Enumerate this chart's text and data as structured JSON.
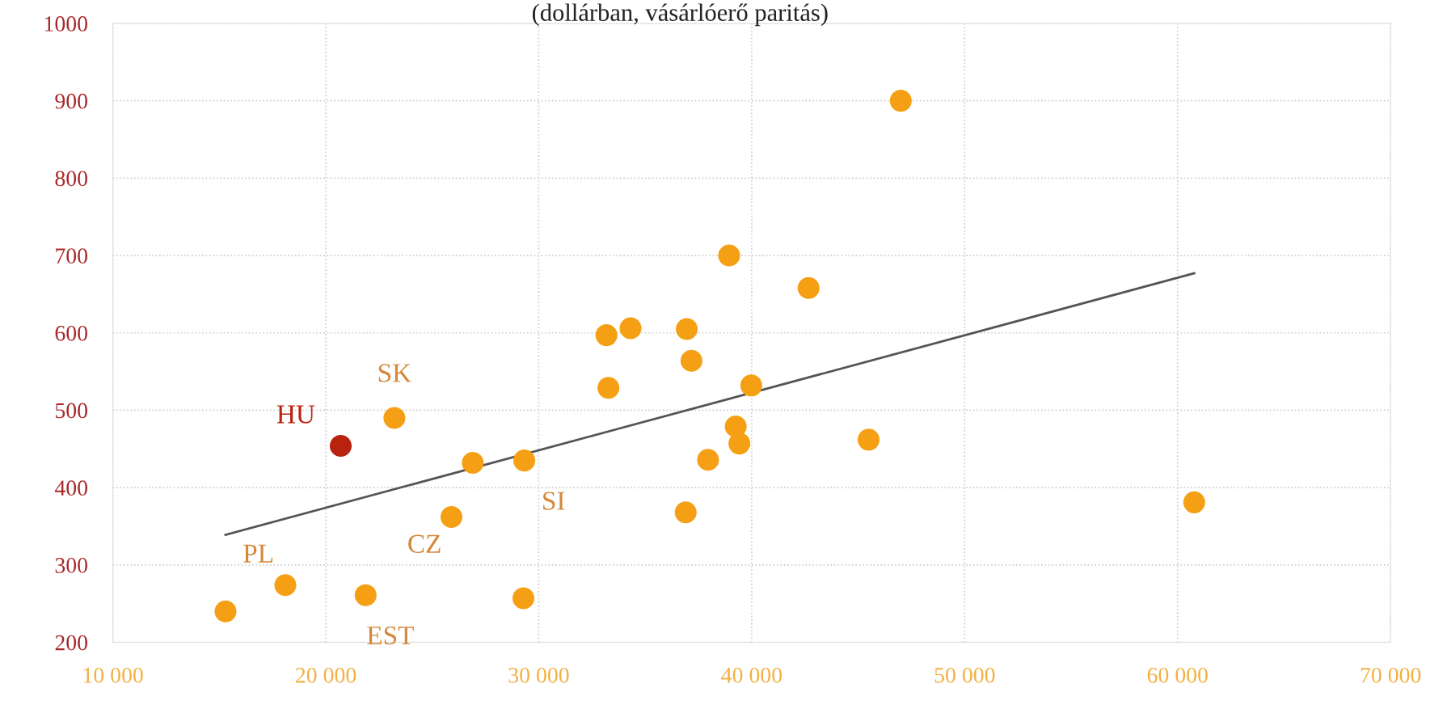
{
  "chart_data": {
    "type": "scatter",
    "subtitle": "(dollárban, vásárlóerő paritás)",
    "series": [
      {
        "marker": "circle",
        "x": [
          15290,
          18100,
          20700,
          21870,
          23220,
          25900,
          26900,
          29320,
          29280,
          33180,
          34310,
          33270,
          36950,
          37170,
          36900,
          38940,
          37950,
          39250,
          39420,
          39980,
          42670,
          45490,
          47000,
          60780
        ],
        "values": [
          240,
          274,
          454,
          261,
          490,
          362,
          432,
          435,
          257,
          597,
          606,
          529,
          605,
          564,
          368,
          700,
          436,
          479,
          457,
          532,
          658,
          462,
          900,
          381
        ],
        "colors": [
          "#f5a014",
          "#f5a014",
          "#b8230f",
          "#f5a014",
          "#f5a014",
          "#f5a014",
          "#f5a014",
          "#f5a014",
          "#f5a014",
          "#f5a014",
          "#f5a014",
          "#f5a014",
          "#f5a014",
          "#f5a014",
          "#f5a014",
          "#f5a014",
          "#f5a014",
          "#f5a014",
          "#f5a014",
          "#f5a014",
          "#f5a014",
          "#f5a014",
          "#f5a014",
          "#f5a014"
        ]
      },
      {
        "type": "line",
        "x": [
          15290,
          60780
        ],
        "values": [
          339,
          677
        ],
        "color": "#555555"
      }
    ],
    "annotations": [
      {
        "text": "SK",
        "x": 23220,
        "y": 490
      },
      {
        "text": "HU",
        "x": 20700,
        "y": 454
      },
      {
        "text": "PL",
        "x": 18100,
        "y": 274
      },
      {
        "text": "EST",
        "x": 21870,
        "y": 261
      },
      {
        "text": "CZ",
        "x": 25900,
        "y": 362
      },
      {
        "text": "SI",
        "x": 29320,
        "y": 435
      }
    ],
    "xlim": [
      10000,
      70000
    ],
    "xticks": [
      {
        "value": 10000,
        "label": "10 000"
      },
      {
        "value": 20000,
        "label": "20 000"
      },
      {
        "value": 30000,
        "label": "30 000"
      },
      {
        "value": 40000,
        "label": "40 000"
      },
      {
        "value": 50000,
        "label": "50 000"
      },
      {
        "value": 60000,
        "label": "60 000"
      },
      {
        "value": 70000,
        "label": "70 000"
      }
    ],
    "ylim": [
      200,
      1000
    ],
    "yticks": [
      200,
      300,
      400,
      500,
      600,
      700,
      800,
      900,
      1000
    ],
    "grid": true
  }
}
